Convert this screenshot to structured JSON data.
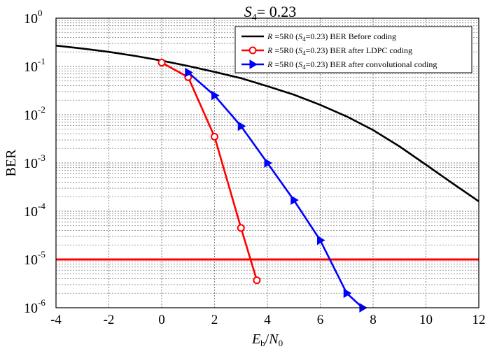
{
  "chart_data": {
    "type": "line",
    "title": "S4= 0.23",
    "title_parts": {
      "var": "S",
      "sub": "4",
      "rest": "= 0.23"
    },
    "xlabel": "Eb/N0",
    "xlabel_parts": {
      "e": "E",
      "e_sub": "b",
      "slash": "/",
      "n": "N",
      "n_sub": "0"
    },
    "ylabel": "BER",
    "xlim": [
      -4,
      12
    ],
    "ylim": [
      1e-06,
      1
    ],
    "yscale": "log",
    "grid": true,
    "x_ticks": [
      -4,
      -2,
      0,
      2,
      4,
      6,
      8,
      10,
      12
    ],
    "y_ticks": [
      {
        "value": 1,
        "base": "10",
        "exp": "0"
      },
      {
        "value": 0.1,
        "base": "10",
        "exp": "-1"
      },
      {
        "value": 0.01,
        "base": "10",
        "exp": "-2"
      },
      {
        "value": 0.001,
        "base": "10",
        "exp": "-3"
      },
      {
        "value": 0.0001,
        "base": "10",
        "exp": "-4"
      },
      {
        "value": 1e-05,
        "base": "10",
        "exp": "-5"
      },
      {
        "value": 1e-06,
        "base": "10",
        "exp": "-6"
      }
    ],
    "legend_position": "top-right",
    "series": [
      {
        "name": "R=5R0 (S4=0.23) BER Before coding",
        "legend": {
          "r": "R",
          "mid": " =5R0 (",
          "s": "S",
          "s_sub": "4",
          "rest": "=0.23) BER Before coding"
        },
        "color": "#000000",
        "marker": "none",
        "x": [
          -4,
          -3,
          -2,
          -1,
          0,
          1,
          2,
          3,
          4,
          5,
          6,
          7,
          8,
          9,
          10,
          11,
          12
        ],
        "y": [
          0.27,
          0.235,
          0.2,
          0.165,
          0.132,
          0.102,
          0.077,
          0.057,
          0.039,
          0.026,
          0.016,
          0.0092,
          0.0048,
          0.0022,
          0.00092,
          0.00038,
          0.00016
        ]
      },
      {
        "name": "R=5R0 (S4=0.23) BER after LDPC coding",
        "legend": {
          "r": "R",
          "mid": " =5R0 (",
          "s": "S",
          "s_sub": "4",
          "rest": "=0.23) BER after LDPC coding"
        },
        "color": "#ff0000",
        "marker": "circle",
        "x": [
          0,
          1,
          2,
          3,
          3.6
        ],
        "y": [
          0.12,
          0.06,
          0.0035,
          4.5e-05,
          3.7e-06
        ]
      },
      {
        "name": "R=5R0 (S4=0.23) BER after convolutional coding",
        "legend": {
          "r": "R",
          "mid": " =5R0 (",
          "s": "S",
          "s_sub": "4",
          "rest": "=0.23) BER after convolutional coding"
        },
        "color": "#0000ff",
        "marker": "triangle-right",
        "x": [
          1,
          2,
          3,
          4,
          5,
          6,
          7,
          7.6
        ],
        "y": [
          0.075,
          0.025,
          0.0058,
          0.001,
          0.00017,
          2.5e-05,
          2e-06,
          1e-06
        ]
      }
    ],
    "reference_line": {
      "y": 1e-05,
      "color": "#ff0000"
    }
  }
}
